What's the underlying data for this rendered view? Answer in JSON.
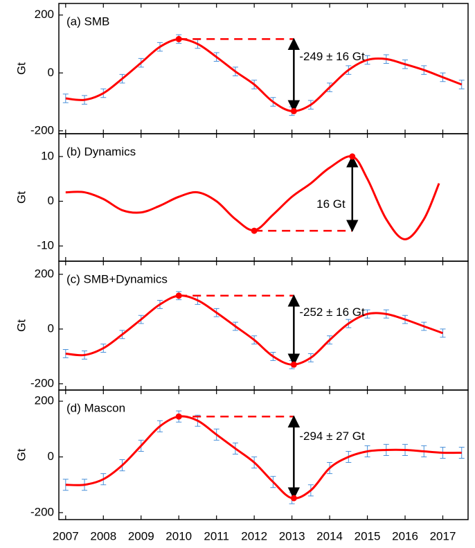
{
  "chart_data": [
    {
      "type": "line",
      "title": "(a) SMB",
      "ylabel": "Gt",
      "annotation": "-249 ± 16 Gt",
      "annotation_side": "right",
      "x": [
        2007,
        2007.5,
        2008,
        2008.5,
        2009,
        2009.5,
        2010,
        2010.5,
        2011,
        2011.5,
        2012,
        2012.5,
        2013,
        2013.5,
        2014,
        2014.5,
        2015,
        2015.5,
        2016,
        2016.5,
        2017,
        2017.5
      ],
      "series": [
        {
          "color": "#ff0000",
          "error_color": "#4a90d9",
          "values": [
            -88,
            -93,
            -70,
            -20,
            35,
            90,
            117,
            100,
            55,
            5,
            -40,
            -100,
            -132,
            -110,
            -50,
            10,
            45,
            48,
            30,
            10,
            -15,
            -40
          ],
          "errors": [
            15,
            15,
            15,
            15,
            15,
            15,
            15,
            15,
            15,
            15,
            15,
            15,
            15,
            15,
            15,
            15,
            15,
            15,
            15,
            15,
            15,
            15
          ]
        }
      ],
      "markers": {
        "x": [
          2010,
          2013.05
        ],
        "values": [
          117,
          -132
        ]
      },
      "xlim": [
        2006.82,
        2017.67
      ],
      "xticks": [
        2007,
        2008,
        2009,
        2010,
        2011,
        2012,
        2013,
        2014,
        2015,
        2016,
        2017
      ],
      "xtick_labels": false,
      "ylim": [
        -210,
        240
      ],
      "yticks": [
        -200,
        0,
        200
      ]
    },
    {
      "type": "line",
      "title": "(b) Dynamics",
      "ylabel": "Gt",
      "annotation": "16 Gt",
      "annotation_side": "left",
      "x": [
        2007,
        2007.5,
        2008,
        2008.5,
        2009,
        2009.5,
        2010,
        2010.5,
        2011,
        2011.5,
        2012,
        2012.5,
        2013,
        2013.5,
        2014,
        2014.6,
        2015,
        2015.5,
        2016,
        2016.5,
        2016.9
      ],
      "series": [
        {
          "color": "#ff0000",
          "values": [
            2,
            2,
            0.5,
            -2,
            -2.5,
            -1,
            1,
            2,
            0,
            -4,
            -6.5,
            -3,
            1,
            4,
            7.5,
            10,
            5,
            -4,
            -8.5,
            -4,
            4
          ]
        }
      ],
      "markers": {
        "x": [
          2012,
          2014.6
        ],
        "values": [
          -6.6,
          10
        ]
      },
      "xlim": [
        2006.82,
        2017.67
      ],
      "xticks": [
        2007,
        2008,
        2009,
        2010,
        2011,
        2012,
        2013,
        2014,
        2015,
        2016,
        2017
      ],
      "xtick_labels": false,
      "ylim": [
        -13.4,
        15.1
      ],
      "yticks": [
        -10,
        0,
        10
      ]
    },
    {
      "type": "line",
      "title": "(c) SMB+Dynamics",
      "ylabel": "Gt",
      "annotation": "-252 ± 16 Gt",
      "annotation_side": "right",
      "x": [
        2007,
        2007.5,
        2008,
        2008.5,
        2009,
        2009.5,
        2010,
        2010.5,
        2011,
        2011.5,
        2012,
        2012.5,
        2013,
        2013.5,
        2014,
        2014.5,
        2015,
        2015.5,
        2016,
        2016.5,
        2017
      ],
      "series": [
        {
          "color": "#ff0000",
          "error_color": "#4a90d9",
          "values": [
            -90,
            -95,
            -70,
            -20,
            35,
            90,
            122,
            105,
            60,
            10,
            -40,
            -100,
            -130,
            -105,
            -40,
            20,
            55,
            55,
            35,
            10,
            -15
          ],
          "errors": [
            15,
            15,
            15,
            15,
            15,
            15,
            15,
            15,
            15,
            15,
            15,
            15,
            15,
            15,
            15,
            15,
            15,
            15,
            15,
            15,
            15
          ]
        }
      ],
      "markers": {
        "x": [
          2010,
          2013.05
        ],
        "values": [
          122,
          -130
        ]
      },
      "xlim": [
        2006.82,
        2017.67
      ],
      "xticks": [
        2007,
        2008,
        2009,
        2010,
        2011,
        2012,
        2013,
        2014,
        2015,
        2016,
        2017
      ],
      "xtick_labels": false,
      "ylim": [
        -223,
        248
      ],
      "yticks": [
        -200,
        0,
        200
      ]
    },
    {
      "type": "line",
      "title": "(d) Mascon",
      "ylabel": "Gt",
      "annotation": "-294 ± 27 Gt",
      "annotation_side": "right",
      "x": [
        2007,
        2007.5,
        2008,
        2008.5,
        2009,
        2009.5,
        2010,
        2010.5,
        2011,
        2011.5,
        2012,
        2012.5,
        2013,
        2013.5,
        2014,
        2014.5,
        2015,
        2015.5,
        2016,
        2016.5,
        2017,
        2017.5
      ],
      "series": [
        {
          "color": "#ff0000",
          "error_color": "#4a90d9",
          "values": [
            -100,
            -100,
            -80,
            -30,
            40,
            110,
            145,
            130,
            80,
            30,
            -20,
            -90,
            -148,
            -120,
            -40,
            0,
            20,
            25,
            25,
            20,
            15,
            15
          ],
          "errors": [
            20,
            20,
            20,
            20,
            20,
            20,
            20,
            20,
            20,
            20,
            20,
            20,
            20,
            20,
            20,
            20,
            20,
            20,
            20,
            20,
            20,
            20
          ]
        }
      ],
      "markers": {
        "x": [
          2010,
          2013.05
        ],
        "values": [
          145,
          -148
        ]
      },
      "xlim": [
        2006.82,
        2017.67
      ],
      "xticks": [
        2007,
        2008,
        2009,
        2010,
        2011,
        2012,
        2013,
        2014,
        2015,
        2016,
        2017
      ],
      "xtick_labels": true,
      "ylim": [
        -225,
        240
      ],
      "yticks": [
        -200,
        0,
        200
      ]
    }
  ]
}
